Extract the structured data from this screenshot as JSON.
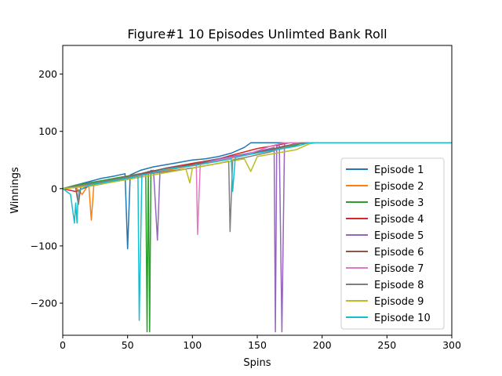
{
  "chart_data": {
    "type": "line",
    "title": "Figure#1 10 Episodes Unlimted Bank Roll",
    "xlabel": "Spins",
    "ylabel": "Winnings",
    "xlim": [
      0,
      300
    ],
    "ylim": [
      -256,
      250
    ],
    "xticks": [
      0,
      50,
      100,
      150,
      200,
      250,
      300
    ],
    "yticks": [
      -200,
      -100,
      0,
      100,
      200
    ],
    "ytick_labels": [
      "−200",
      "−100",
      "0",
      "100",
      "200"
    ],
    "grid": false,
    "legend_position": "lower-right",
    "series": [
      {
        "name": "Episode 1",
        "color": "#1f77b4",
        "points": [
          [
            0,
            0
          ],
          [
            10,
            6
          ],
          [
            20,
            12
          ],
          [
            30,
            18
          ],
          [
            40,
            22
          ],
          [
            48,
            26
          ],
          [
            50,
            -105
          ],
          [
            52,
            24
          ],
          [
            60,
            32
          ],
          [
            70,
            38
          ],
          [
            80,
            42
          ],
          [
            90,
            46
          ],
          [
            100,
            50
          ],
          [
            110,
            52
          ],
          [
            120,
            56
          ],
          [
            130,
            62
          ],
          [
            140,
            72
          ],
          [
            145,
            80
          ],
          [
            170,
            80
          ],
          [
            300,
            80
          ]
        ]
      },
      {
        "name": "Episode 2",
        "color": "#ff7f0e",
        "points": [
          [
            0,
            0
          ],
          [
            10,
            2
          ],
          [
            15,
            -10
          ],
          [
            20,
            8
          ],
          [
            22,
            -55
          ],
          [
            24,
            8
          ],
          [
            30,
            12
          ],
          [
            40,
            18
          ],
          [
            60,
            26
          ],
          [
            80,
            32
          ],
          [
            100,
            40
          ],
          [
            120,
            48
          ],
          [
            140,
            58
          ],
          [
            160,
            68
          ],
          [
            175,
            76
          ],
          [
            180,
            80
          ],
          [
            300,
            80
          ]
        ]
      },
      {
        "name": "Episode 3",
        "color": "#2ca02c",
        "points": [
          [
            0,
            0
          ],
          [
            10,
            6
          ],
          [
            20,
            10
          ],
          [
            30,
            14
          ],
          [
            40,
            18
          ],
          [
            50,
            22
          ],
          [
            60,
            26
          ],
          [
            64,
            28
          ],
          [
            65,
            -250
          ],
          [
            66,
            30
          ],
          [
            67,
            -250
          ],
          [
            68,
            32
          ],
          [
            70,
            30
          ],
          [
            80,
            36
          ],
          [
            100,
            44
          ],
          [
            120,
            52
          ],
          [
            140,
            60
          ],
          [
            160,
            68
          ],
          [
            180,
            76
          ],
          [
            185,
            80
          ],
          [
            300,
            80
          ]
        ]
      },
      {
        "name": "Episode 4",
        "color": "#d62728",
        "points": [
          [
            0,
            0
          ],
          [
            10,
            -5
          ],
          [
            20,
            4
          ],
          [
            30,
            8
          ],
          [
            50,
            20
          ],
          [
            60,
            24
          ],
          [
            70,
            30
          ],
          [
            80,
            36
          ],
          [
            100,
            44
          ],
          [
            110,
            48
          ],
          [
            120,
            52
          ],
          [
            130,
            58
          ],
          [
            140,
            64
          ],
          [
            150,
            70
          ],
          [
            160,
            74
          ],
          [
            170,
            78
          ],
          [
            175,
            80
          ],
          [
            300,
            80
          ]
        ]
      },
      {
        "name": "Episode 5",
        "color": "#9467bd",
        "points": [
          [
            0,
            0
          ],
          [
            10,
            4
          ],
          [
            20,
            8
          ],
          [
            40,
            16
          ],
          [
            60,
            26
          ],
          [
            70,
            32
          ],
          [
            73,
            -90
          ],
          [
            75,
            32
          ],
          [
            80,
            36
          ],
          [
            100,
            42
          ],
          [
            120,
            52
          ],
          [
            140,
            60
          ],
          [
            160,
            70
          ],
          [
            163,
            72
          ],
          [
            164,
            -250
          ],
          [
            165,
            74
          ],
          [
            167,
            76
          ],
          [
            169,
            -250
          ],
          [
            171,
            78
          ],
          [
            175,
            80
          ],
          [
            300,
            80
          ]
        ]
      },
      {
        "name": "Episode 6",
        "color": "#8c564b",
        "points": [
          [
            0,
            0
          ],
          [
            10,
            2
          ],
          [
            12,
            -28
          ],
          [
            14,
            4
          ],
          [
            20,
            8
          ],
          [
            40,
            16
          ],
          [
            60,
            26
          ],
          [
            80,
            36
          ],
          [
            100,
            42
          ],
          [
            120,
            50
          ],
          [
            140,
            58
          ],
          [
            160,
            68
          ],
          [
            170,
            74
          ],
          [
            180,
            78
          ],
          [
            190,
            80
          ],
          [
            300,
            80
          ]
        ]
      },
      {
        "name": "Episode 7",
        "color": "#e377c2",
        "points": [
          [
            0,
            0
          ],
          [
            20,
            6
          ],
          [
            40,
            14
          ],
          [
            60,
            22
          ],
          [
            80,
            34
          ],
          [
            100,
            40
          ],
          [
            103,
            42
          ],
          [
            104,
            -80
          ],
          [
            106,
            42
          ],
          [
            120,
            50
          ],
          [
            140,
            58
          ],
          [
            160,
            74
          ],
          [
            170,
            80
          ],
          [
            300,
            80
          ]
        ]
      },
      {
        "name": "Episode 8",
        "color": "#7f7f7f",
        "points": [
          [
            0,
            0
          ],
          [
            10,
            4
          ],
          [
            20,
            8
          ],
          [
            40,
            16
          ],
          [
            60,
            24
          ],
          [
            80,
            30
          ],
          [
            100,
            36
          ],
          [
            120,
            44
          ],
          [
            128,
            48
          ],
          [
            129,
            -75
          ],
          [
            131,
            50
          ],
          [
            140,
            54
          ],
          [
            160,
            64
          ],
          [
            170,
            72
          ],
          [
            180,
            78
          ],
          [
            185,
            80
          ],
          [
            300,
            80
          ]
        ]
      },
      {
        "name": "Episode 9",
        "color": "#bcbd22",
        "points": [
          [
            0,
            0
          ],
          [
            20,
            4
          ],
          [
            40,
            12
          ],
          [
            60,
            20
          ],
          [
            80,
            28
          ],
          [
            95,
            34
          ],
          [
            98,
            10
          ],
          [
            100,
            36
          ],
          [
            120,
            44
          ],
          [
            140,
            52
          ],
          [
            145,
            30
          ],
          [
            150,
            56
          ],
          [
            160,
            60
          ],
          [
            170,
            64
          ],
          [
            180,
            68
          ],
          [
            190,
            78
          ],
          [
            195,
            80
          ],
          [
            300,
            80
          ]
        ]
      },
      {
        "name": "Episode 10",
        "color": "#17becf",
        "points": [
          [
            0,
            0
          ],
          [
            6,
            -10
          ],
          [
            9,
            -60
          ],
          [
            10,
            -25
          ],
          [
            11,
            -60
          ],
          [
            12,
            -4
          ],
          [
            20,
            6
          ],
          [
            30,
            10
          ],
          [
            40,
            14
          ],
          [
            45,
            16
          ],
          [
            50,
            18
          ],
          [
            55,
            20
          ],
          [
            58,
            22
          ],
          [
            59,
            -230
          ],
          [
            61,
            24
          ],
          [
            70,
            28
          ],
          [
            80,
            34
          ],
          [
            100,
            40
          ],
          [
            120,
            48
          ],
          [
            130,
            52
          ],
          [
            131,
            -5
          ],
          [
            133,
            54
          ],
          [
            140,
            58
          ],
          [
            160,
            66
          ],
          [
            180,
            74
          ],
          [
            190,
            80
          ],
          [
            300,
            80
          ]
        ]
      }
    ]
  }
}
